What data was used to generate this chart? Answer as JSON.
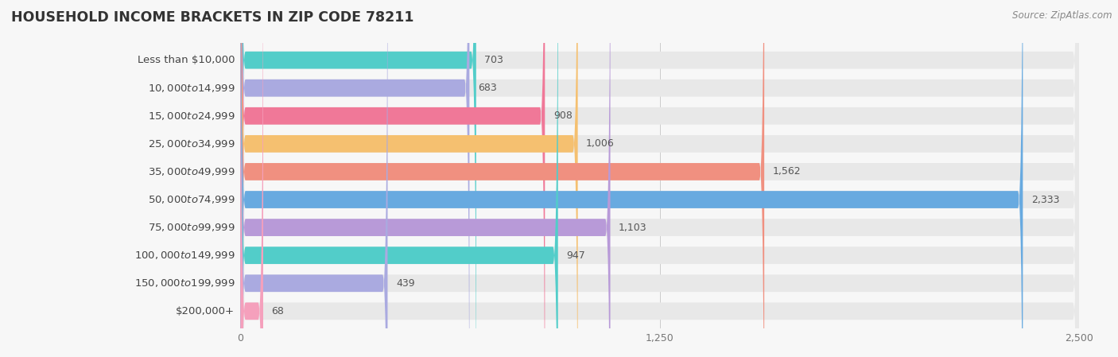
{
  "title": "HOUSEHOLD INCOME BRACKETS IN ZIP CODE 78211",
  "source": "Source: ZipAtlas.com",
  "categories": [
    "Less than $10,000",
    "$10,000 to $14,999",
    "$15,000 to $24,999",
    "$25,000 to $34,999",
    "$35,000 to $49,999",
    "$50,000 to $74,999",
    "$75,000 to $99,999",
    "$100,000 to $149,999",
    "$150,000 to $199,999",
    "$200,000+"
  ],
  "values": [
    703,
    683,
    908,
    1006,
    1562,
    2333,
    1103,
    947,
    439,
    68
  ],
  "bar_colors": [
    "#52cdc9",
    "#aaaae0",
    "#f07898",
    "#f5c070",
    "#f09080",
    "#68aae0",
    "#b89ad8",
    "#52cdc9",
    "#aaaae0",
    "#f5a0bc"
  ],
  "background_color": "#f7f7f7",
  "bar_bg_color": "#e8e8e8",
  "xlim_max": 2500,
  "xticks": [
    0,
    1250,
    2500
  ],
  "bar_height": 0.62,
  "label_fontsize": 9.5,
  "title_fontsize": 12.5,
  "value_fontsize": 9,
  "source_fontsize": 8.5
}
